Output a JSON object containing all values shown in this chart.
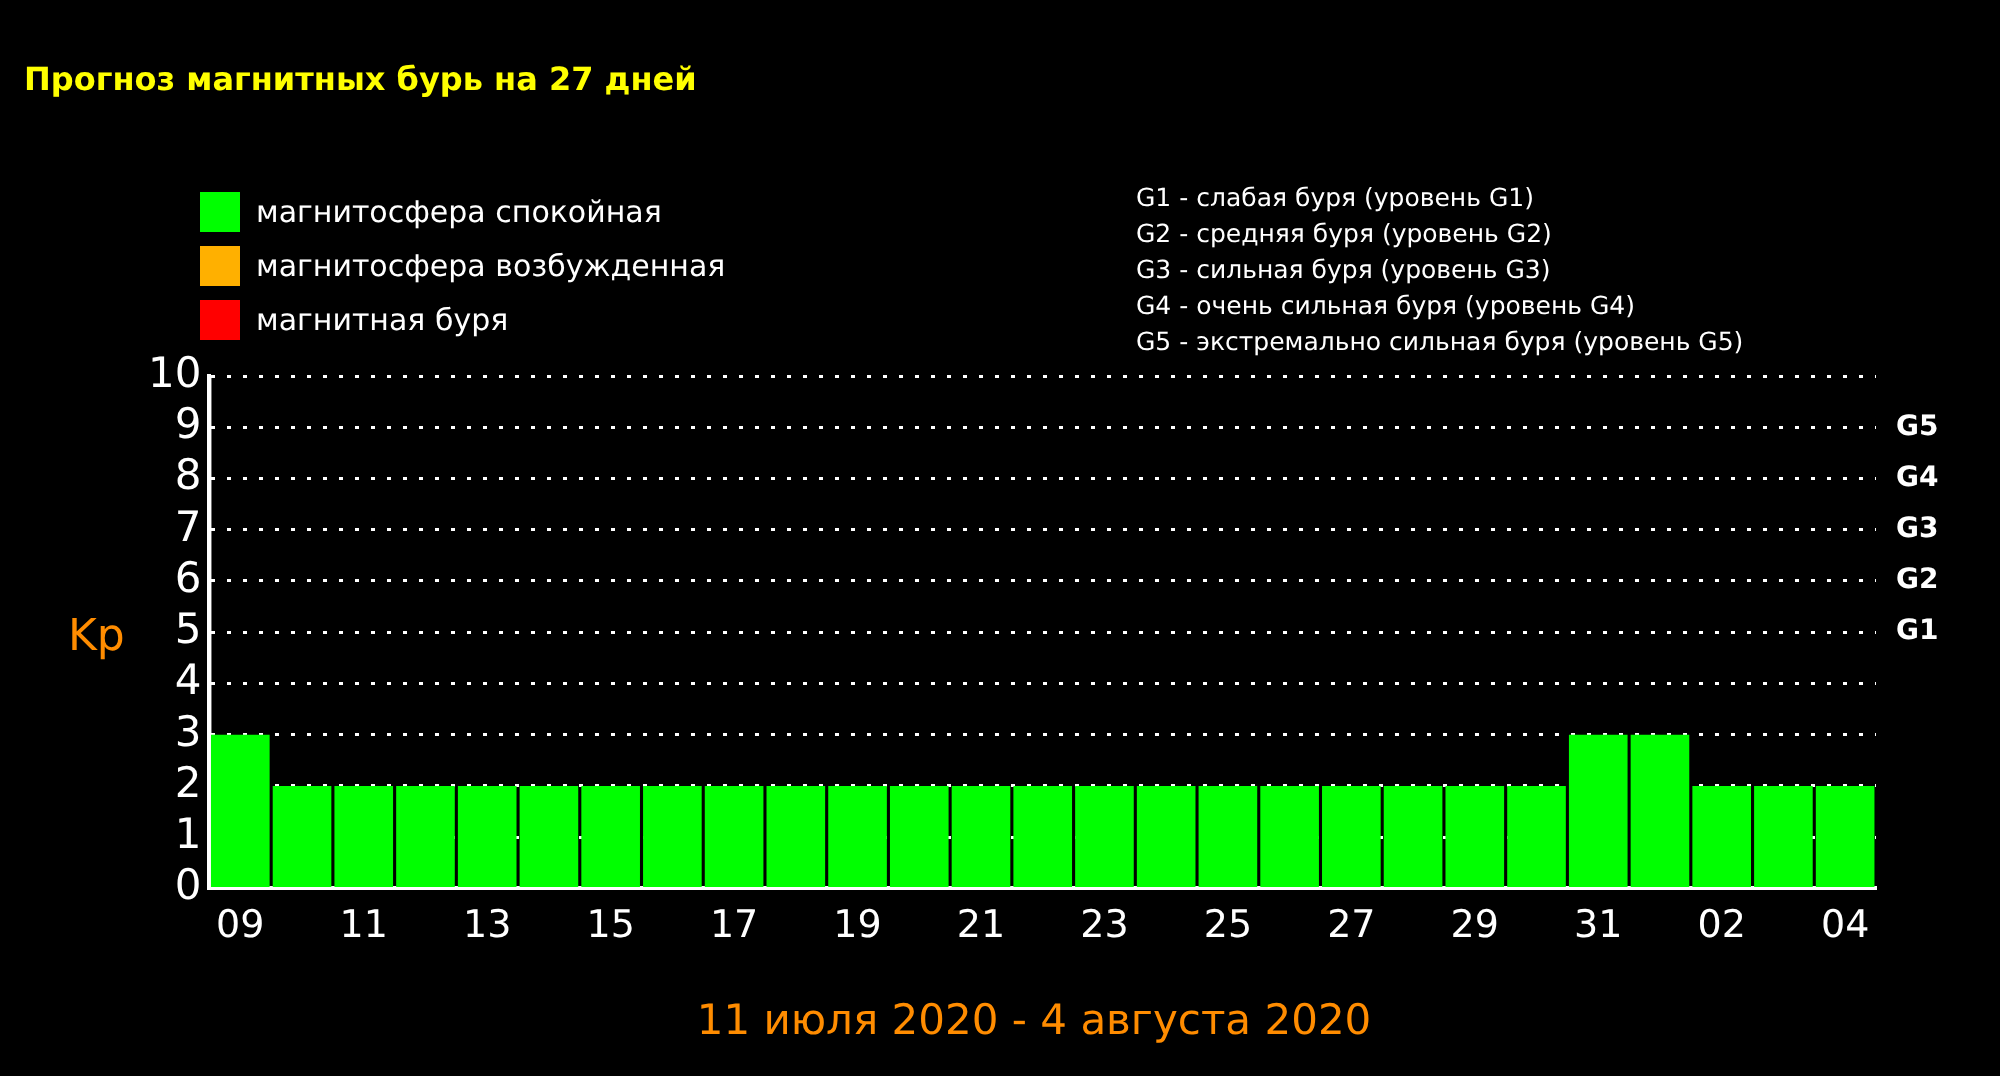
{
  "chart_data": {
    "type": "bar",
    "title": "Прогноз магнитных бурь на 27 дней",
    "xlabel": "11 июля 2020 - 4 августа 2020",
    "ylabel": "Kp",
    "categories": [
      "09",
      null,
      "11",
      null,
      "13",
      null,
      "15",
      null,
      "17",
      null,
      "19",
      null,
      "21",
      null,
      "23",
      null,
      "25",
      null,
      "27",
      null,
      "29",
      null,
      "31",
      null,
      "02",
      null,
      "04"
    ],
    "series": [
      {
        "name": "магнитосфера спокойная",
        "color": "#00ff00",
        "values": [
          3,
          2,
          2,
          2,
          2,
          2,
          2,
          2,
          2,
          2,
          2,
          2,
          2,
          2,
          2,
          2,
          2,
          2,
          2,
          2,
          2,
          2,
          3,
          3,
          2,
          2,
          2
        ]
      },
      {
        "name": "магнитосфера возбужденная",
        "color": "#ffb000",
        "values": [
          null,
          null,
          null,
          null,
          null,
          null,
          null,
          null,
          null,
          null,
          null,
          null,
          null,
          null,
          null,
          null,
          null,
          null,
          null,
          null,
          null,
          null,
          null,
          null,
          null,
          null,
          null
        ]
      },
      {
        "name": "магнитная буря",
        "color": "#ff0000",
        "values": [
          null,
          null,
          null,
          null,
          null,
          null,
          null,
          null,
          null,
          null,
          null,
          null,
          null,
          null,
          null,
          null,
          null,
          null,
          null,
          null,
          null,
          null,
          null,
          null,
          null,
          null,
          null
        ]
      }
    ],
    "stacked": true,
    "ylim": [
      0,
      10
    ],
    "yticks": [
      0,
      1,
      2,
      3,
      4,
      5,
      6,
      7,
      8,
      9,
      10
    ],
    "grid": "y",
    "legend": "top left",
    "annotations": [
      "G1 - слабая буря (уровень G1)",
      "G2 - средняя буря (уровень G2)",
      "G3 - сильная буря (уровень G3)",
      "G4 - очень сильная буря (уровень G4)",
      "G5 - экстремально сильная буря (уровень G5)",
      "G5",
      "G4",
      "G3",
      "G2",
      "G1"
    ]
  }
}
